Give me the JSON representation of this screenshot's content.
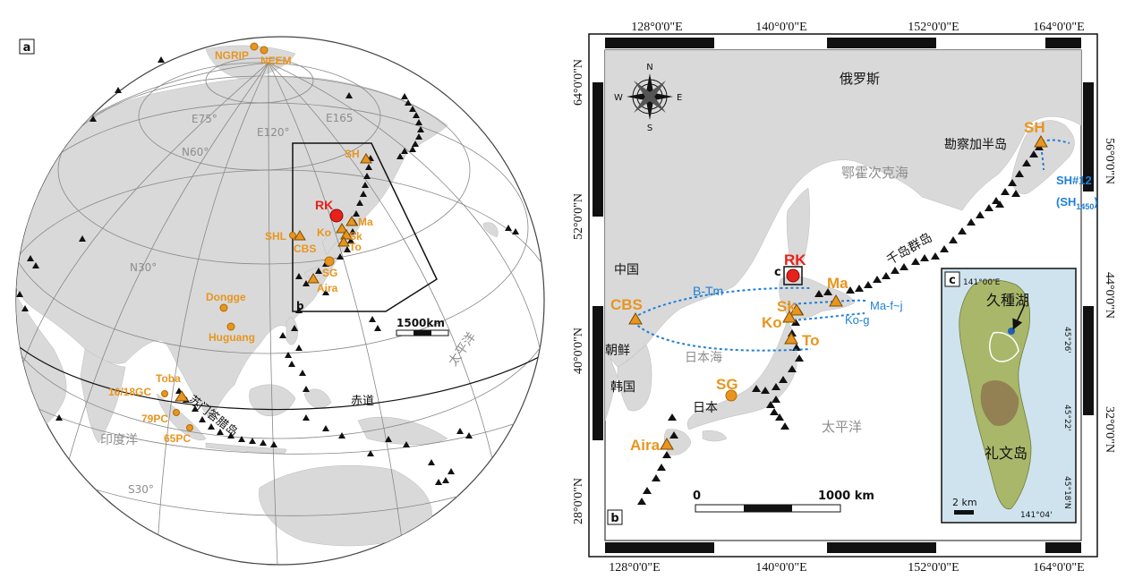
{
  "panel_a": {
    "label": "a",
    "grid_labels": {
      "e75": "E75°",
      "e120": "E120°",
      "e165": "E165",
      "n60": "N60°",
      "n30": "N30°",
      "s30": "S30°"
    },
    "equator": "赤道",
    "ocean_pacific": "太平洋",
    "ocean_indian": "印度洋",
    "sumatra": "苏门答腊岛",
    "scale": "1500km",
    "inset_label": "b",
    "sites": {
      "ngrip": "NGRIP",
      "neem": "NEEM",
      "sh": "SH",
      "rk": "RK",
      "ma": "Ma",
      "ko": "Ko",
      "sk": "Sk",
      "to": "To",
      "shl": "SHL",
      "cbs": "CBS",
      "sg": "SG",
      "aira": "Aira",
      "dongge": "Dongge",
      "huguang": "Huguang",
      "toba": "Toba",
      "gc": "16/18GC",
      "pc79": "79PC",
      "pc65": "65PC"
    }
  },
  "panel_b": {
    "label": "b",
    "top_ticks": [
      "128°0'0\"E",
      "140°0'0\"E",
      "152°0'0\"E",
      "164°0'0\"E"
    ],
    "bottom_ticks": [
      "128°0'0\"E",
      "140°0'0\"E",
      "152°0'0\"E",
      "164°0'0\"E"
    ],
    "left_ticks": [
      "64°0'0\"N",
      "52°0'0\"N",
      "40°0'0\"N",
      "28°0'0\"N"
    ],
    "right_ticks": [
      "56°0'0\"N",
      "44°0'0\"N",
      "32°0'0\"N"
    ],
    "compass": {
      "n": "N",
      "s": "S",
      "e": "E",
      "w": "W"
    },
    "russia": "俄罗斯",
    "okhotsk": "鄂霍次克海",
    "kamchatka": "勘察加半岛",
    "kuril": "千岛群岛",
    "china": "中国",
    "korea_n": "朝鲜",
    "korea_s": "韩国",
    "sea_japan": "日本海",
    "japan": "日本",
    "pacific": "太平洋",
    "sh12": "SH#12",
    "sh1450_main": "(SH",
    "sh1450_sub": "1450",
    "sh1450_end": ")",
    "btm": "B-Tm",
    "mafj": "Ma-f~j",
    "kog": "Ko-g",
    "inset_c": "c",
    "scale_0": "0",
    "scale_1000": "1000 km",
    "sites": {
      "sh": "SH",
      "rk": "RK",
      "ma": "Ma",
      "sk": "Sk",
      "ko": "Ko",
      "to": "To",
      "cbs": "CBS",
      "sg": "SG",
      "aira": "Aira"
    }
  },
  "panel_c": {
    "label": "c",
    "lake": "久種湖",
    "island": "礼文岛",
    "lon_top": "141°00'E",
    "lon_bottom": "141°04'",
    "lat_26": "45°26'",
    "lat_22": "45°22'",
    "lat_18": "45°18'N",
    "scale": "2 km"
  },
  "colors": {
    "site_orange": "#e8951f",
    "rk_red": "#e8211b",
    "tephra_blue": "#1f7fd6",
    "land_gray": "#d9d9d9",
    "sea_blue": "#cfe3ef"
  }
}
